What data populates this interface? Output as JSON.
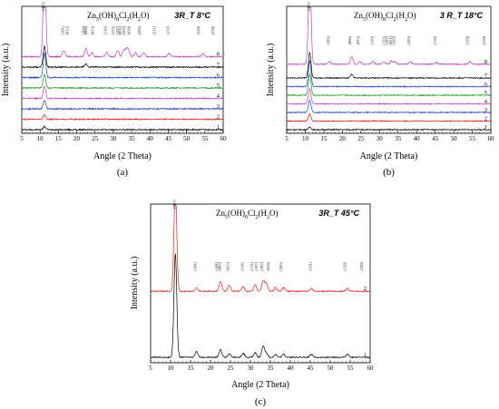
{
  "chart_data": [
    {
      "panel": "(a)",
      "type": "line",
      "title": "Zn5(OH)8Cl2(H2O)",
      "condition": "3R_T 8°C",
      "xlabel": "Angle (2 Theta)",
      "ylabel": "Intensity (a.u.)",
      "xlim": [
        5,
        60
      ],
      "xticks": [
        5,
        10,
        15,
        20,
        25,
        30,
        35,
        40,
        45,
        50,
        55,
        60
      ],
      "series": [
        {
          "name": "1",
          "color": "#000000",
          "offset": 0,
          "peaks": [
            [
              11.2,
              0.3
            ]
          ]
        },
        {
          "name": "2",
          "color": "#d62020",
          "offset": 1,
          "peaks": [
            [
              11.2,
              0.4
            ]
          ]
        },
        {
          "name": "3",
          "color": "#1f3fbf",
          "offset": 2,
          "peaks": [
            [
              11.2,
              0.8
            ]
          ]
        },
        {
          "name": "4",
          "color": "#c040c0",
          "offset": 3,
          "peaks": [
            [
              11.2,
              1.1
            ]
          ]
        },
        {
          "name": "5",
          "color": "#1a9a1a",
          "offset": 4,
          "peaks": [
            [
              11.2,
              1.3
            ]
          ]
        },
        {
          "name": "6",
          "color": "#1f3fbf",
          "offset": 5,
          "peaks": [
            [
              11.2,
              2.4
            ]
          ]
        },
        {
          "name": "7",
          "color": "#000000",
          "offset": 6,
          "peaks": [
            [
              11.2,
              2.0
            ],
            [
              22.5,
              0.3
            ]
          ]
        },
        {
          "name": "8",
          "color": "#c040c0",
          "offset": 7,
          "peaks": [
            [
              11.2,
              9.5
            ],
            [
              16.5,
              0.6
            ],
            [
              22.5,
              0.8
            ],
            [
              24.2,
              0.4
            ],
            [
              28.2,
              0.4
            ],
            [
              31.2,
              0.6
            ],
            [
              32.8,
              0.6
            ],
            [
              33.6,
              0.7
            ],
            [
              34.2,
              0.5
            ],
            [
              36.0,
              0.4
            ],
            [
              38.3,
              0.4
            ],
            [
              45.2,
              0.3
            ],
            [
              54.5,
              0.3
            ]
          ]
        }
      ],
      "peak_labels": [
        {
          "x": 11.2,
          "label": "(003)"
        },
        {
          "x": 16.5,
          "label": "(101)"
        },
        {
          "x": 17.8,
          "label": "(012)"
        },
        {
          "x": 22.2,
          "label": "(104)"
        },
        {
          "x": 22.9,
          "label": "(006)"
        },
        {
          "x": 24.7,
          "label": "(015)"
        },
        {
          "x": 28.2,
          "label": "(110)"
        },
        {
          "x": 30.3,
          "label": "(113)"
        },
        {
          "x": 31.5,
          "label": "(107)"
        },
        {
          "x": 32.3,
          "label": "(021)"
        },
        {
          "x": 33.2,
          "label": "(202)"
        },
        {
          "x": 34.6,
          "label": "(018)"
        },
        {
          "x": 37.5,
          "label": "(205)"
        },
        {
          "x": 41.5,
          "label": "(211)"
        },
        {
          "x": 45.3,
          "label": "(119)"
        },
        {
          "x": 53.5,
          "label": "(128)"
        },
        {
          "x": 57.5,
          "label": "(220)"
        }
      ]
    },
    {
      "panel": "(b)",
      "type": "line",
      "title": "Zn5(OH)8Cl2(H2O)",
      "condition": "3 R_T 18°C",
      "xlabel": "Angle (2 Theta)",
      "ylabel": "Intensity (a.u.)",
      "xlim": [
        5,
        60
      ],
      "xticks": [
        5,
        10,
        15,
        20,
        25,
        30,
        35,
        40,
        45,
        50,
        55,
        60
      ],
      "series": [
        {
          "name": "1",
          "color": "#000000",
          "offset": 0,
          "peaks": [
            [
              11.2,
              0.3
            ]
          ]
        },
        {
          "name": "2",
          "color": "#d62020",
          "offset": 1,
          "peaks": [
            [
              11.2,
              0.8
            ]
          ]
        },
        {
          "name": "3",
          "color": "#1f3fbf",
          "offset": 2,
          "peaks": [
            [
              11.2,
              1.4
            ]
          ]
        },
        {
          "name": "4",
          "color": "#c040c0",
          "offset": 3,
          "peaks": [
            [
              11.2,
              1.8
            ]
          ]
        },
        {
          "name": "5",
          "color": "#1a9a1a",
          "offset": 4,
          "peaks": [
            [
              11.2,
              2.4
            ]
          ]
        },
        {
          "name": "6",
          "color": "#1f3fbf",
          "offset": 5,
          "peaks": [
            [
              11.2,
              3.0
            ]
          ]
        },
        {
          "name": "7",
          "color": "#000000",
          "offset": 6,
          "peaks": [
            [
              11.2,
              3.0
            ],
            [
              22.5,
              0.4
            ]
          ]
        },
        {
          "name": "8",
          "color": "#c040c0",
          "offset": 7.6,
          "peaks": [
            [
              11.2,
              11.5
            ],
            [
              16.5,
              0.3
            ],
            [
              22.5,
              0.9
            ],
            [
              24.7,
              0.3
            ],
            [
              28.2,
              0.3
            ],
            [
              31.2,
              0.3
            ],
            [
              33.2,
              0.4
            ],
            [
              34.2,
              0.3
            ],
            [
              38.3,
              0.3
            ],
            [
              45.3,
              0.2
            ],
            [
              54.3,
              0.3
            ]
          ]
        }
      ],
      "peak_labels": [
        {
          "x": 11.2,
          "label": "(003)"
        },
        {
          "x": 16.5,
          "label": "(101)"
        },
        {
          "x": 22.3,
          "label": "(006)"
        },
        {
          "x": 24.6,
          "label": "(015)"
        },
        {
          "x": 28.4,
          "label": "(110)"
        },
        {
          "x": 31.5,
          "label": "(113)"
        },
        {
          "x": 32.4,
          "label": "(107)"
        },
        {
          "x": 33.3,
          "label": "(021)"
        },
        {
          "x": 34.2,
          "label": "(202)"
        },
        {
          "x": 38.2,
          "label": "(205)"
        },
        {
          "x": 45.3,
          "label": "(119)"
        },
        {
          "x": 54.0,
          "label": "(128)"
        },
        {
          "x": 58.5,
          "label": "(220)"
        }
      ]
    },
    {
      "panel": "(c)",
      "type": "line",
      "title": "Zn5(OH)8Cl2(H2O)",
      "condition": "3R_T 45°C",
      "xlabel": "Angle (2 Theta)",
      "ylabel": "Intensity (a.u.)",
      "xlim": [
        5,
        60
      ],
      "xticks": [
        5,
        10,
        15,
        20,
        25,
        30,
        35,
        40,
        45,
        50,
        55,
        60
      ],
      "series": [
        {
          "name": "1",
          "color": "#000000",
          "offset": 0,
          "peaks": [
            [
              11.2,
              11.0
            ],
            [
              16.5,
              0.6
            ],
            [
              22.5,
              0.8
            ],
            [
              24.7,
              0.4
            ],
            [
              28.2,
              0.4
            ],
            [
              31.2,
              0.5
            ],
            [
              33.2,
              1.2
            ],
            [
              34.0,
              0.4
            ],
            [
              36.3,
              0.3
            ],
            [
              38.3,
              0.3
            ],
            [
              45.3,
              0.3
            ],
            [
              54.3,
              0.3
            ]
          ]
        },
        {
          "name": "2",
          "color": "#e02020",
          "offset": 7,
          "peaks": [
            [
              11.2,
              11.0
            ],
            [
              16.5,
              0.4
            ],
            [
              22.5,
              1.0
            ],
            [
              24.7,
              0.6
            ],
            [
              28.2,
              0.5
            ],
            [
              31.2,
              0.7
            ],
            [
              33.2,
              1.1
            ],
            [
              34.0,
              0.8
            ],
            [
              36.3,
              0.4
            ],
            [
              38.3,
              0.4
            ],
            [
              45.3,
              0.3
            ],
            [
              54.3,
              0.3
            ]
          ]
        }
      ],
      "peak_labels": [
        {
          "x": 11.2,
          "label": "(003)"
        },
        {
          "x": 16.5,
          "label": "(101)"
        },
        {
          "x": 21.8,
          "label": "(104)"
        },
        {
          "x": 22.6,
          "label": "(006)"
        },
        {
          "x": 24.7,
          "label": "(015)"
        },
        {
          "x": 28.3,
          "label": "(110)"
        },
        {
          "x": 30.7,
          "label": "(113)"
        },
        {
          "x": 31.8,
          "label": "(107)"
        },
        {
          "x": 33.2,
          "label": "(202)"
        },
        {
          "x": 34.8,
          "label": "(018)"
        },
        {
          "x": 38.0,
          "label": "(205)"
        },
        {
          "x": 45.3,
          "label": "(119)"
        },
        {
          "x": 54.0,
          "label": "(128)"
        },
        {
          "x": 58.2,
          "label": "(220)"
        }
      ]
    }
  ]
}
